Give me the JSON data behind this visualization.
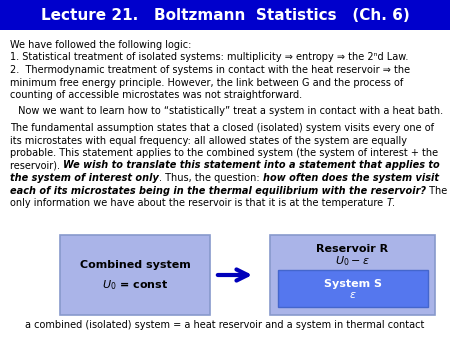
{
  "title": "Lecture 21.   Boltzmann  Statistics   (Ch. 6)",
  "title_bg": "#0000cc",
  "title_fg": "#ffffff",
  "body_bg": "#ffffff",
  "body_bg2": "#eeeeee",
  "caption": "a combined (isolated) system = a heat reservoir and a system in thermal contact",
  "box_left_color": "#aab4e8",
  "box_right_color": "#aab4e8",
  "box_inner_color": "#5577ee",
  "arrow_color": "#0000bb",
  "box_left_line1": "Combined system",
  "box_left_line2": "$U_0$ = const",
  "box_right_header1": "Reservoir R",
  "box_right_header2": "$U_0 - \\varepsilon$",
  "box_inner_line1": "System S",
  "box_inner_line2": "$\\varepsilon$"
}
